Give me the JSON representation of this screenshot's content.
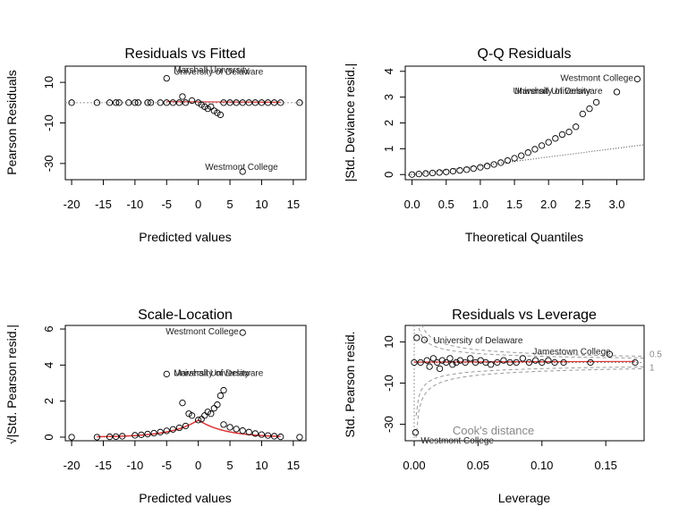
{
  "chart_data": [
    {
      "type": "scatter",
      "title": "Residuals vs Fitted",
      "xlabel": "Predicted values",
      "ylabel": "Pearson Residuals",
      "xlim": [
        -21,
        17
      ],
      "ylim": [
        -38,
        18
      ],
      "xticks": [
        -20,
        -15,
        -10,
        -5,
        0,
        5,
        10,
        15
      ],
      "yticks": [
        10,
        -10,
        -30
      ],
      "reference_line": 0,
      "points": [
        {
          "x": -20,
          "y": 0
        },
        {
          "x": -16,
          "y": 0
        },
        {
          "x": -14,
          "y": 0
        },
        {
          "x": -13,
          "y": 0
        },
        {
          "x": -12.5,
          "y": 0
        },
        {
          "x": -11,
          "y": 0
        },
        {
          "x": -10,
          "y": 0
        },
        {
          "x": -9.5,
          "y": 0
        },
        {
          "x": -8,
          "y": 0
        },
        {
          "x": -7.5,
          "y": 0
        },
        {
          "x": -6,
          "y": 0
        },
        {
          "x": -5,
          "y": 0
        },
        {
          "x": -4,
          "y": 0
        },
        {
          "x": -3,
          "y": 0
        },
        {
          "x": -2.5,
          "y": 3
        },
        {
          "x": -2,
          "y": 0
        },
        {
          "x": -1,
          "y": 1
        },
        {
          "x": 0,
          "y": 0
        },
        {
          "x": 0.5,
          "y": -1
        },
        {
          "x": 1,
          "y": -2
        },
        {
          "x": 1.5,
          "y": -3
        },
        {
          "x": 2,
          "y": -2
        },
        {
          "x": 2.5,
          "y": -4
        },
        {
          "x": 3,
          "y": -5
        },
        {
          "x": 3.5,
          "y": -6
        },
        {
          "x": 4,
          "y": 0
        },
        {
          "x": 5,
          "y": 0
        },
        {
          "x": 6,
          "y": 0
        },
        {
          "x": 7,
          "y": 0
        },
        {
          "x": 8,
          "y": 0
        },
        {
          "x": 9,
          "y": 0
        },
        {
          "x": 10,
          "y": 0
        },
        {
          "x": 11,
          "y": 0
        },
        {
          "x": 12,
          "y": 0
        },
        {
          "x": 13,
          "y": 0
        },
        {
          "x": 16,
          "y": 0
        },
        {
          "x": -5,
          "y": 12
        },
        {
          "x": 7,
          "y": -34
        }
      ],
      "annotations": [
        {
          "label": "University of Delaware",
          "x": -5,
          "y": 12
        },
        {
          "label": "Marshall University",
          "x": -5,
          "y": 12
        },
        {
          "label": "Westmont College",
          "x": 7,
          "y": -34
        }
      ]
    },
    {
      "type": "scatter",
      "title": "Q-Q Residuals",
      "xlabel": "Theoretical Quantiles",
      "ylabel": "|Std. Deviance resid.|",
      "xlim": [
        -0.1,
        3.4
      ],
      "ylim": [
        -0.2,
        4.2
      ],
      "xticks": [
        0.0,
        0.5,
        1.0,
        1.5,
        2.0,
        2.5,
        3.0
      ],
      "yticks": [
        0,
        1,
        2,
        3,
        4
      ],
      "reference_line": {
        "slope": 0.34,
        "intercept": 0
      },
      "points": [
        {
          "x": 0.0,
          "y": 0.0
        },
        {
          "x": 0.1,
          "y": 0.02
        },
        {
          "x": 0.2,
          "y": 0.04
        },
        {
          "x": 0.3,
          "y": 0.06
        },
        {
          "x": 0.4,
          "y": 0.08
        },
        {
          "x": 0.5,
          "y": 0.1
        },
        {
          "x": 0.6,
          "y": 0.13
        },
        {
          "x": 0.7,
          "y": 0.16
        },
        {
          "x": 0.8,
          "y": 0.19
        },
        {
          "x": 0.9,
          "y": 0.23
        },
        {
          "x": 1.0,
          "y": 0.28
        },
        {
          "x": 1.1,
          "y": 0.33
        },
        {
          "x": 1.2,
          "y": 0.39
        },
        {
          "x": 1.3,
          "y": 0.46
        },
        {
          "x": 1.4,
          "y": 0.54
        },
        {
          "x": 1.5,
          "y": 0.63
        },
        {
          "x": 1.6,
          "y": 0.73
        },
        {
          "x": 1.7,
          "y": 0.85
        },
        {
          "x": 1.8,
          "y": 0.98
        },
        {
          "x": 1.9,
          "y": 1.12
        },
        {
          "x": 2.0,
          "y": 1.25
        },
        {
          "x": 2.1,
          "y": 1.4
        },
        {
          "x": 2.2,
          "y": 1.55
        },
        {
          "x": 2.3,
          "y": 1.65
        },
        {
          "x": 2.4,
          "y": 1.85
        },
        {
          "x": 2.5,
          "y": 2.35
        },
        {
          "x": 2.6,
          "y": 2.55
        },
        {
          "x": 2.7,
          "y": 2.8
        },
        {
          "x": 3.0,
          "y": 3.2
        },
        {
          "x": 3.3,
          "y": 3.7
        }
      ],
      "annotations": [
        {
          "label": "Westmont College",
          "x": 3.3,
          "y": 3.7
        },
        {
          "label": "University of Delaware",
          "x": 3.0,
          "y": 3.2
        },
        {
          "label": "Marshall University",
          "x": 3.0,
          "y": 3.2
        }
      ]
    },
    {
      "type": "scatter",
      "title": "Scale-Location",
      "xlabel": "Predicted values",
      "ylabel": "√|Std. Pearson resid.|",
      "xlim": [
        -21,
        17
      ],
      "ylim": [
        -0.2,
        6.2
      ],
      "xticks": [
        -20,
        -15,
        -10,
        -5,
        0,
        5,
        10,
        15
      ],
      "yticks": [
        0,
        2,
        4,
        6
      ],
      "points": [
        {
          "x": -20,
          "y": 0.0
        },
        {
          "x": -16,
          "y": 0.0
        },
        {
          "x": -14,
          "y": 0.02
        },
        {
          "x": -13,
          "y": 0.03
        },
        {
          "x": -12,
          "y": 0.05
        },
        {
          "x": -10,
          "y": 0.1
        },
        {
          "x": -9,
          "y": 0.13
        },
        {
          "x": -8,
          "y": 0.17
        },
        {
          "x": -7,
          "y": 0.22
        },
        {
          "x": -6,
          "y": 0.28
        },
        {
          "x": -5,
          "y": 0.35
        },
        {
          "x": -4,
          "y": 0.43
        },
        {
          "x": -3,
          "y": 0.52
        },
        {
          "x": -2.5,
          "y": 1.9
        },
        {
          "x": -2,
          "y": 0.62
        },
        {
          "x": -1.5,
          "y": 1.3
        },
        {
          "x": -1,
          "y": 1.2
        },
        {
          "x": 0,
          "y": 0.95
        },
        {
          "x": 0.5,
          "y": 1.0
        },
        {
          "x": 1,
          "y": 1.2
        },
        {
          "x": 1.5,
          "y": 1.4
        },
        {
          "x": 2,
          "y": 1.3
        },
        {
          "x": 2.5,
          "y": 1.6
        },
        {
          "x": 3,
          "y": 1.8
        },
        {
          "x": 3.5,
          "y": 2.3
        },
        {
          "x": 4,
          "y": 2.6
        },
        {
          "x": 4,
          "y": 0.7
        },
        {
          "x": 5,
          "y": 0.55
        },
        {
          "x": 6,
          "y": 0.45
        },
        {
          "x": 7,
          "y": 0.36
        },
        {
          "x": 8,
          "y": 0.28
        },
        {
          "x": 9,
          "y": 0.2
        },
        {
          "x": 10,
          "y": 0.14
        },
        {
          "x": 11,
          "y": 0.09
        },
        {
          "x": 12,
          "y": 0.05
        },
        {
          "x": 13,
          "y": 0.02
        },
        {
          "x": 16,
          "y": 0.0
        },
        {
          "x": -5,
          "y": 3.5
        },
        {
          "x": 7,
          "y": 5.8
        }
      ],
      "annotations": [
        {
          "label": "Westmont College",
          "x": 7,
          "y": 5.8
        },
        {
          "label": "University of Delaware",
          "x": -5,
          "y": 3.5
        },
        {
          "label": "Marshall University",
          "x": -5,
          "y": 3.5
        }
      ]
    },
    {
      "type": "scatter",
      "title": "Residuals vs Leverage",
      "xlabel": "Leverage",
      "ylabel": "Std. Pearson resid.",
      "xlim": [
        -0.007,
        0.18
      ],
      "ylim": [
        -38,
        18
      ],
      "xticks": [
        0.0,
        0.05,
        0.1,
        0.15
      ],
      "yticks": [
        10,
        -10,
        -30
      ],
      "cooks_distance_contours": [
        "0.5",
        "1"
      ],
      "legend": "Cook's distance",
      "points": [
        {
          "x": 0.002,
          "y": 12
        },
        {
          "x": 0.008,
          "y": 11
        },
        {
          "x": 0.001,
          "y": -34
        },
        {
          "x": 0.0,
          "y": 0
        },
        {
          "x": 0.005,
          "y": 0
        },
        {
          "x": 0.01,
          "y": 1
        },
        {
          "x": 0.012,
          "y": -2
        },
        {
          "x": 0.015,
          "y": 2
        },
        {
          "x": 0.018,
          "y": 0
        },
        {
          "x": 0.02,
          "y": -3
        },
        {
          "x": 0.022,
          "y": 1
        },
        {
          "x": 0.025,
          "y": 0
        },
        {
          "x": 0.028,
          "y": 2
        },
        {
          "x": 0.03,
          "y": -1
        },
        {
          "x": 0.033,
          "y": 0
        },
        {
          "x": 0.036,
          "y": 1
        },
        {
          "x": 0.04,
          "y": 0
        },
        {
          "x": 0.044,
          "y": 2
        },
        {
          "x": 0.048,
          "y": 0
        },
        {
          "x": 0.052,
          "y": 1
        },
        {
          "x": 0.056,
          "y": 0
        },
        {
          "x": 0.06,
          "y": -1
        },
        {
          "x": 0.065,
          "y": 0
        },
        {
          "x": 0.07,
          "y": 1
        },
        {
          "x": 0.075,
          "y": 0
        },
        {
          "x": 0.08,
          "y": 0
        },
        {
          "x": 0.085,
          "y": 2
        },
        {
          "x": 0.09,
          "y": 0
        },
        {
          "x": 0.095,
          "y": 1
        },
        {
          "x": 0.1,
          "y": 0
        },
        {
          "x": 0.105,
          "y": 1
        },
        {
          "x": 0.11,
          "y": 0
        },
        {
          "x": 0.117,
          "y": 0
        },
        {
          "x": 0.138,
          "y": 0
        },
        {
          "x": 0.153,
          "y": 4
        },
        {
          "x": 0.173,
          "y": 0
        }
      ],
      "annotations": [
        {
          "label": "University of Delaware",
          "x": 0.008,
          "y": 11
        },
        {
          "label": "Jamestown College",
          "x": 0.153,
          "y": 4
        },
        {
          "label": "Westmont College",
          "x": 0.001,
          "y": -34
        }
      ]
    }
  ]
}
